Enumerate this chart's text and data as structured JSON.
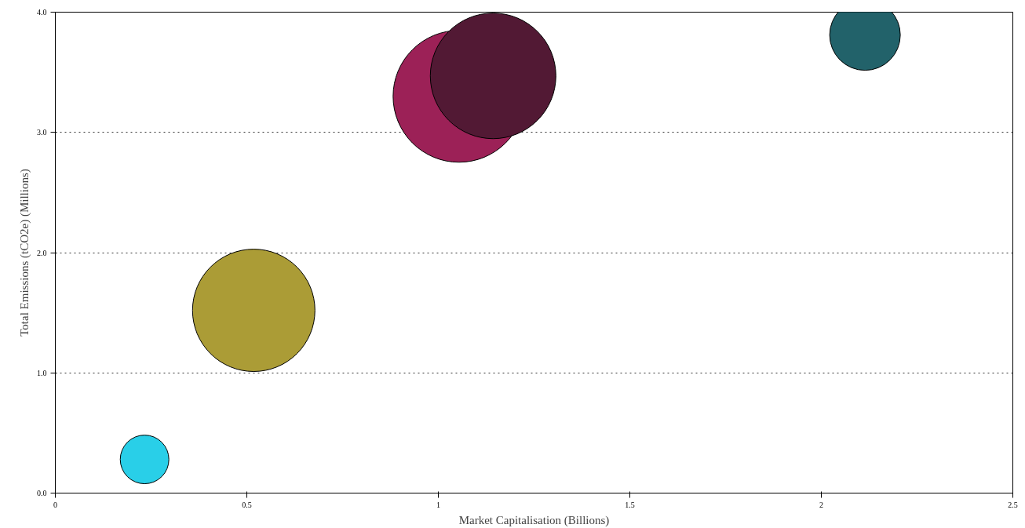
{
  "chart_data": {
    "type": "bubble",
    "xlabel": "Market Capitalisation (Billions)",
    "ylabel": "Total Emissions (tCO2e) (Millions)",
    "x": [
      0.233,
      0.518,
      1.054,
      1.143,
      2.114
    ],
    "values": [
      0.28,
      1.52,
      3.3,
      3.47,
      3.81
    ],
    "sizes": [
      0.136,
      0.862,
      1,
      0.907,
      0.287
    ],
    "colors": [
      "#29cfe8",
      "#ab9c36",
      "#9c2157",
      "#521934",
      "#22626a"
    ],
    "xlim": [
      0,
      2.5
    ],
    "xticks": [
      0,
      0.5,
      1,
      1.5,
      2,
      2.5
    ],
    "ylim": [
      0,
      4
    ],
    "yticks": [
      {
        "value": 0,
        "label": "0.0"
      },
      {
        "value": 1,
        "label": "1.0"
      },
      {
        "value": 2,
        "label": "2.0"
      },
      {
        "value": 3,
        "label": "3.0"
      },
      {
        "value": 4,
        "label": "4.0"
      }
    ],
    "grid": "y"
  }
}
